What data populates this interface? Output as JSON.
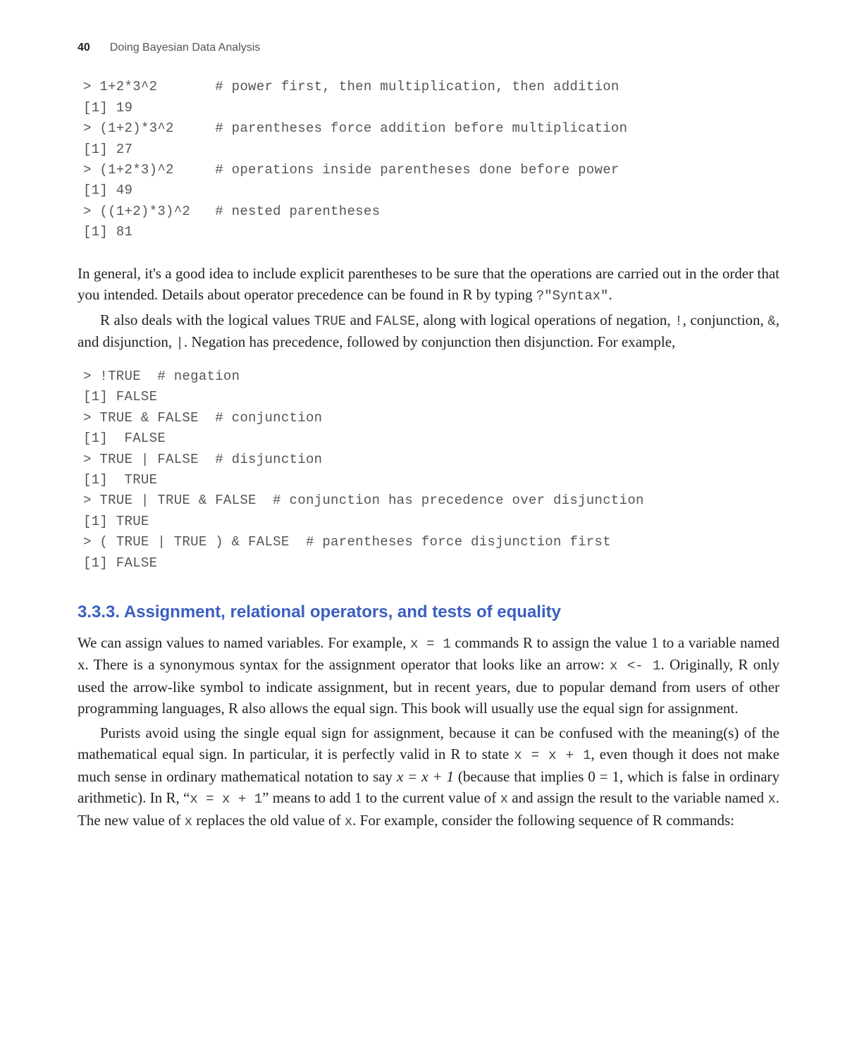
{
  "header": {
    "page_number": "40",
    "running_title": "Doing Bayesian Data Analysis"
  },
  "code1": {
    "l1": "> 1+2*3^2       # power first, then multiplication, then addition",
    "l2": "[1] 19",
    "l3": "> (1+2)*3^2     # parentheses force addition before multiplication",
    "l4": "[1] 27",
    "l5": "> (1+2*3)^2     # operations inside parentheses done before power",
    "l6": "[1] 49",
    "l7": "> ((1+2)*3)^2   # nested parentheses",
    "l8": "[1] 81"
  },
  "para1": {
    "t1": "In general, it's a good idea to include explicit parentheses to be sure that the operations are carried out in the order that you intended. Details about operator precedence can be found in R by typing ",
    "c1": "?\"Syntax\"",
    "t2": "."
  },
  "para2": {
    "t1": "R also deals with the logical values ",
    "c1": "TRUE",
    "t2": " and ",
    "c2": "FALSE",
    "t3": ", along with logical operations of negation, ",
    "c3": "!",
    "t4": ", conjunction, ",
    "c4": "&",
    "t5": ", and disjunction, ",
    "c5": "|",
    "t6": ". Negation has precedence, followed by conjunction then disjunction. For example,"
  },
  "code2": {
    "l1": "> !TRUE  # negation",
    "l2": "[1] FALSE",
    "l3": "> TRUE & FALSE  # conjunction",
    "l4": "[1]  FALSE",
    "l5": "> TRUE | FALSE  # disjunction",
    "l6": "[1]  TRUE",
    "l7": "> TRUE | TRUE & FALSE  # conjunction has precedence over disjunction",
    "l8": "[1] TRUE",
    "l9": "> ( TRUE | TRUE ) & FALSE  # parentheses force disjunction first",
    "l10": "[1] FALSE"
  },
  "section": {
    "number": "3.3.3.",
    "title": "Assignment, relational operators, and tests of equality"
  },
  "para3": {
    "t1": "We can assign values to named variables. For example, ",
    "c1": "x = 1",
    "t2": " commands R to assign the value 1 to a variable named x. There is a synonymous syntax for the assignment operator that looks like an arrow: ",
    "c2": "x <- 1",
    "t3": ". Originally, R only used the arrow-like symbol to indicate assignment, but in recent years, due to popular demand from users of other programming languages, R also allows the equal sign. This book will usually use the equal sign for assignment."
  },
  "para4": {
    "t1": "Purists avoid using the single equal sign for assignment, because it can be confused with the meaning(s) of the mathematical equal sign. In particular, it is perfectly valid in R to state ",
    "c1": "x = x + 1",
    "t2": ", even though it does not make much sense in ordinary mathematical notation to say ",
    "m1": "x  =  x + 1",
    "t3": " (because that implies 0  =  1, which is false in ordinary arithmetic). In R, “",
    "c2": "x = x + 1",
    "t4": "” means to add 1 to the current value of ",
    "c3": "x",
    "t5": " and assign the result to the variable named ",
    "c4": "x",
    "t6": ". The new value of ",
    "c5": "x",
    "t7": " replaces the old value of ",
    "c6": "x",
    "t8": ". For example, consider the following sequence of R commands:"
  }
}
